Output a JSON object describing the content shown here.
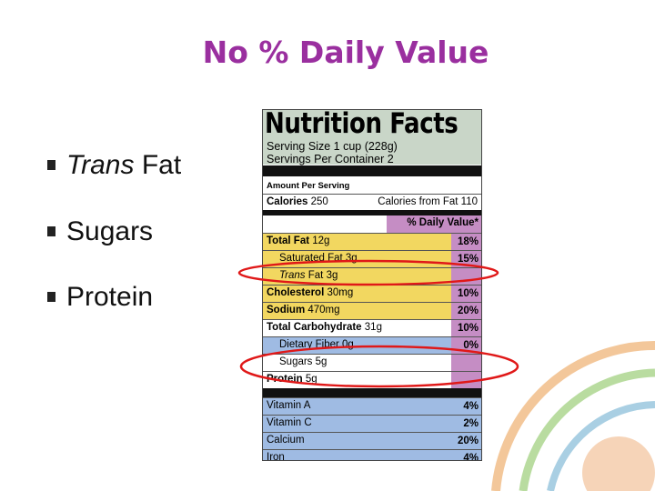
{
  "title": "No % Daily Value",
  "bullets": [
    {
      "italic": "Trans",
      "text": "Fat"
    },
    {
      "text": "Sugars"
    },
    {
      "text": "Protein"
    }
  ],
  "label": {
    "heading": "Nutrition Facts",
    "serving_size": "Serving Size 1 cup (228g)",
    "servings_per_container": "Servings Per Container  2",
    "amount_per_serving": "Amount Per Serving",
    "calories": {
      "label": "Calories",
      "amount": "250",
      "from_fat": "Calories from Fat 110"
    },
    "daily_value_header": "% Daily Value*",
    "rows": [
      {
        "label": "Total Fat",
        "amount": "12g",
        "dv": "18%",
        "bold": true,
        "bg": "#f2d760"
      },
      {
        "label": "Saturated Fat",
        "amount": "3g",
        "dv": "15%",
        "indent": true,
        "bg": "#f2d760"
      },
      {
        "italic": "Trans",
        "label": "Fat",
        "amount": "3g",
        "indent": true,
        "bg": "#f2d760"
      },
      {
        "label": "Cholesterol",
        "amount": "30mg",
        "dv": "10%",
        "bold": true,
        "bg": "#f2d760"
      },
      {
        "label": "Sodium",
        "amount": "470mg",
        "dv": "20%",
        "bold": true,
        "bg": "#f2d760"
      },
      {
        "label": "Total Carbohydrate",
        "amount": "31g",
        "dv": "10%",
        "bold": true,
        "bg": "#ffffff"
      },
      {
        "label": "Dietary Fiber",
        "amount": "0g",
        "dv": "0%",
        "indent": true,
        "bg": "#9fbbe3"
      },
      {
        "label": "Sugars",
        "amount": "5g",
        "indent": true,
        "bg": "#ffffff"
      },
      {
        "label": "Protein",
        "amount": "5g",
        "bold": true,
        "bg": "#ffffff"
      }
    ],
    "vitamins": [
      {
        "label": "Vitamin A",
        "dv": "4%"
      },
      {
        "label": "Vitamin C",
        "dv": "2%"
      },
      {
        "label": "Calcium",
        "dv": "20%"
      },
      {
        "label": "Iron",
        "dv": "4%"
      }
    ]
  }
}
